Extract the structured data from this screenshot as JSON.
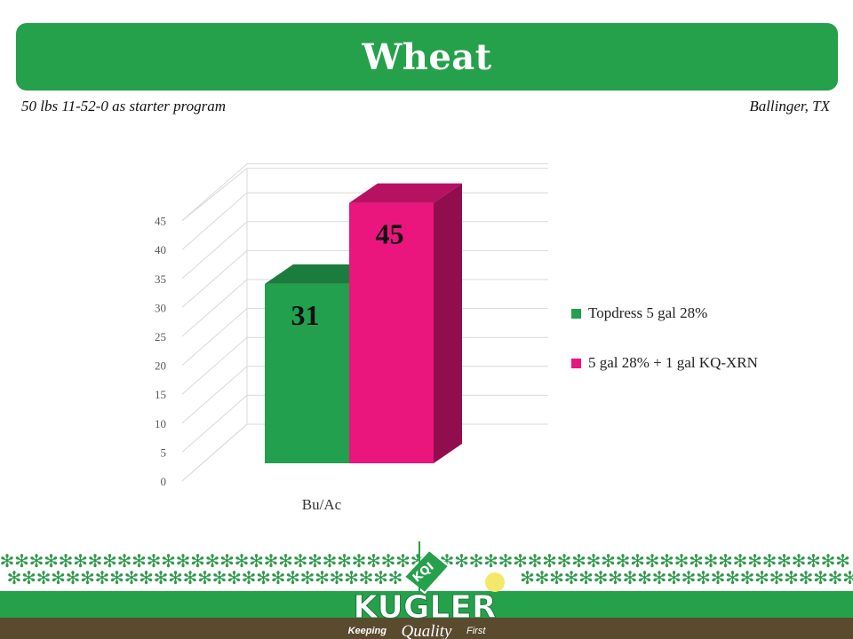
{
  "header": {
    "title": "Wheat",
    "subtitle_left": "50 lbs 11-52-0 as starter program",
    "subtitle_right": "Ballinger, TX"
  },
  "chart_data": {
    "type": "bar",
    "categories": [
      "Bu/Ac"
    ],
    "series": [
      {
        "name": "Topdress 5 gal 28%",
        "values": [
          31
        ],
        "color": "#22a04e"
      },
      {
        "name": "5 gal 28% + 1 gal KQ-XRN",
        "values": [
          45
        ],
        "color": "#ea167d"
      }
    ],
    "ylim": [
      0,
      45
    ],
    "yticks": [
      0,
      5,
      10,
      15,
      20,
      25,
      30,
      35,
      40,
      45
    ],
    "xlabel": "",
    "ylabel": "",
    "grid": true,
    "legend": "right",
    "three_d": true
  },
  "footer": {
    "brand": "KUGLER",
    "badge": "KQI",
    "tagline_left": "Keeping",
    "tagline_mid": "Quality",
    "tagline_right": "First",
    "colors": {
      "green": "#25a04b",
      "brown": "#5a4a2e",
      "star": "#2e9b4a"
    }
  }
}
